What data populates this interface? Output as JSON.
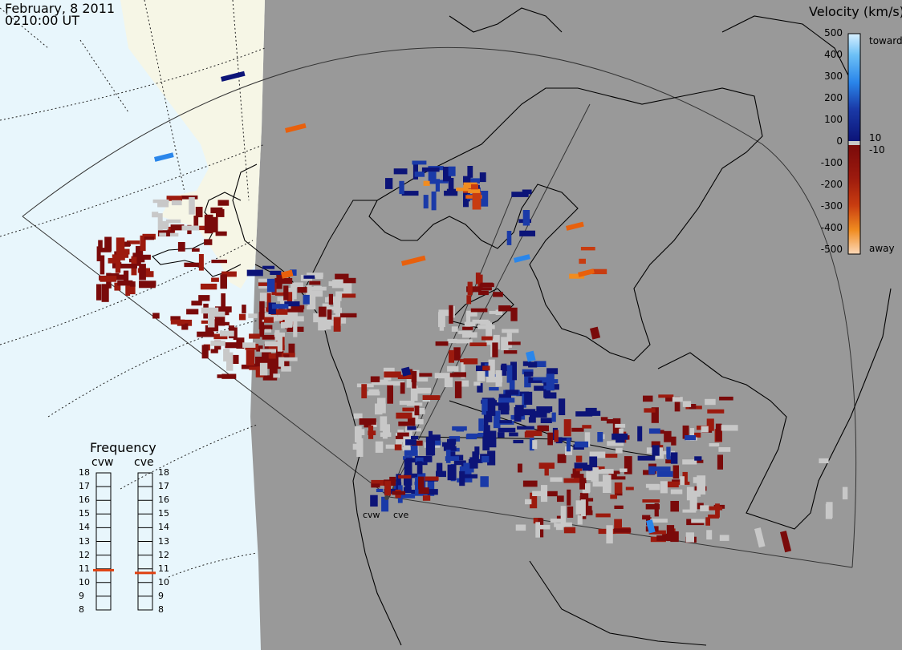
{
  "header": {
    "date": "February, 8 2011",
    "time": "0210:00 UT"
  },
  "velocity_legend": {
    "title": "Velocity (km/s)",
    "ticks": [
      "500",
      "400",
      "300",
      "200",
      "100",
      "0",
      "-100",
      "-200",
      "-300",
      "-400",
      "-500"
    ],
    "inner_ticks": [
      "10",
      "-10"
    ],
    "toward_label": "toward",
    "away_label": "away",
    "colors": {
      "toward": [
        "#0c1478",
        "#1a3aa8",
        "#1f5fd0",
        "#2a86ea",
        "#4fa8f2",
        "#9ed6f8",
        "#d8f0ff"
      ],
      "away": [
        "#7a0a0a",
        "#9c1a0e",
        "#c83c10",
        "#e8600c",
        "#f08c20",
        "#f8b070",
        "#fcd8b8"
      ],
      "ground_scatter": "#c8c8c8",
      "background_land": "#999999",
      "ocean": "#e8f6fc",
      "unobserved_land": "#f6f6e6"
    }
  },
  "frequency_panel": {
    "title": "Frequency",
    "radars": [
      {
        "name": "cvw",
        "value_mhz": 10.9
      },
      {
        "name": "cve",
        "value_mhz": 10.7
      }
    ],
    "scale": [
      "18",
      "17",
      "16",
      "15",
      "14",
      "13",
      "12",
      "11",
      "10",
      "9",
      "8"
    ]
  },
  "radar_sites": [
    {
      "name": "cvw"
    },
    {
      "name": "cve"
    }
  ]
}
